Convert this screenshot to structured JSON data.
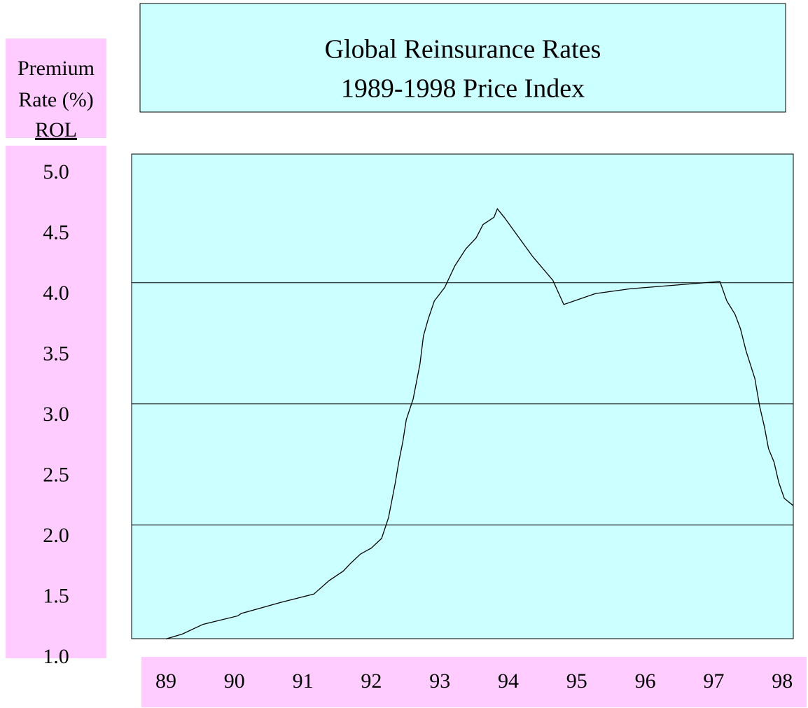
{
  "chart_data": {
    "type": "line",
    "title": [
      "Global Reinsurance Rates",
      "1989-1998 Price Index"
    ],
    "y_label": [
      "Premium",
      "Rate (%)",
      "ROL"
    ],
    "x": [
      89.0,
      89.24,
      89.54,
      90.05,
      90.1,
      90.67,
      91.16,
      91.38,
      91.59,
      91.69,
      91.84,
      92.0,
      92.15,
      92.25,
      92.35,
      92.4,
      92.46,
      92.51,
      92.61,
      92.71,
      92.76,
      92.83,
      92.92,
      93.07,
      93.22,
      93.38,
      93.53,
      93.63,
      93.79,
      93.84,
      93.94,
      94.35,
      94.65,
      94.81,
      95.27,
      95.78,
      96.44,
      97.09,
      97.19,
      97.31,
      97.39,
      97.47,
      97.6,
      97.67,
      97.74,
      97.8,
      97.88,
      97.95,
      98.03,
      98.16
    ],
    "series": [
      {
        "color": "#000000",
        "values": [
          1.16,
          1.2,
          1.28,
          1.35,
          1.37,
          1.46,
          1.53,
          1.64,
          1.72,
          1.78,
          1.86,
          1.91,
          1.99,
          2.16,
          2.45,
          2.62,
          2.79,
          2.97,
          3.14,
          3.43,
          3.66,
          3.8,
          3.95,
          4.06,
          4.24,
          4.38,
          4.47,
          4.58,
          4.64,
          4.71,
          4.64,
          4.32,
          4.12,
          3.92,
          4.01,
          4.05,
          4.08,
          4.11,
          3.95,
          3.84,
          3.72,
          3.54,
          3.31,
          3.08,
          2.91,
          2.73,
          2.62,
          2.45,
          2.32,
          2.26
        ]
      }
    ],
    "xlim": [
      88.5,
      98.2
    ],
    "xticks": [
      89,
      90,
      91,
      92,
      93,
      94,
      95,
      96,
      97,
      98
    ],
    "ylim": [
      1.0,
      5.0
    ],
    "yticks": [
      {
        "value": 5,
        "label": "5.0"
      },
      {
        "value": 4.5,
        "label": "4.5"
      },
      {
        "value": 4,
        "label": "4.0"
      },
      {
        "value": 3.5,
        "label": "3.5"
      },
      {
        "value": 3,
        "label": "3.0"
      },
      {
        "value": 2.5,
        "label": "2.5"
      },
      {
        "value": 2,
        "label": "2.0"
      },
      {
        "value": 1.5,
        "label": "1.5"
      },
      {
        "value": 1,
        "label": "1.0"
      }
    ],
    "gridlines": [
      4.1,
      3.1,
      2.1
    ],
    "plot_color": "#ccffff",
    "label_color": "#ffccff"
  }
}
